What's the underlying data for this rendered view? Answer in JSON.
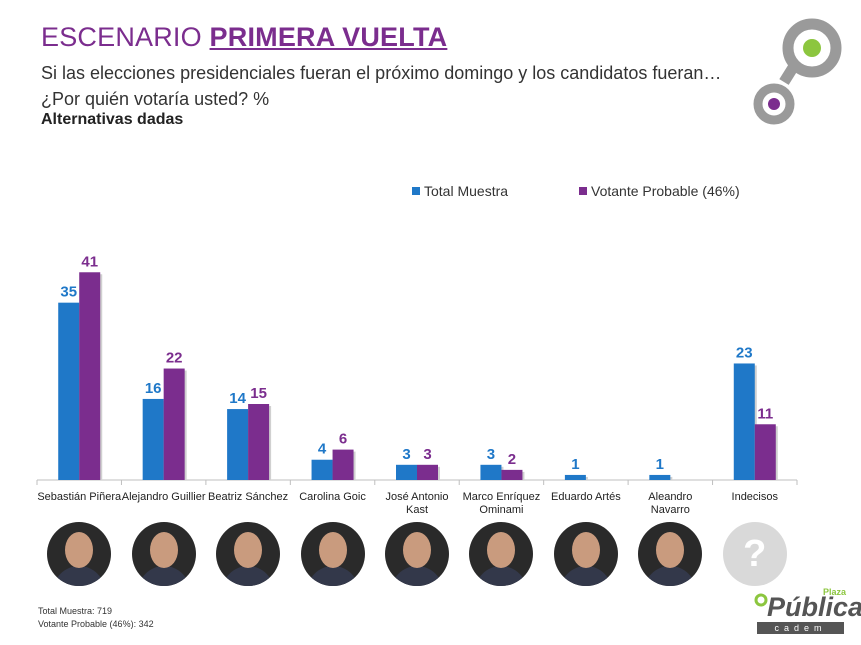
{
  "header": {
    "title_prefix": "ESCENARIO ",
    "title_strong": "PRIMERA VUELTA",
    "subtitle": "Si las elecciones presidenciales fueran el próximo domingo y los candidatos fueran… ¿Por quién votaría usted? %",
    "alt_label": "Alternativas dadas"
  },
  "footer": {
    "total": "Total Muestra: 719",
    "probable": "Votante Probable (46%): 342"
  },
  "logo": {
    "name": "Pública",
    "plaza": "Plaza",
    "cadem": "cadem",
    "mark_icon": "cadem-circle-logo-icon"
  },
  "chart_data": {
    "type": "bar",
    "categories": [
      "Sebastián Piñera",
      "Alejandro Guillier",
      "Beatriz Sánchez",
      "Carolina Goic",
      "José Antonio Kast",
      "Marco Enríquez Ominami",
      "Eduardo Artés",
      "Aleandro Navarro",
      "Indecisos"
    ],
    "series": [
      {
        "name": "Total Muestra",
        "color": "#1f78c8",
        "values": [
          35,
          16,
          14,
          4,
          3,
          3,
          1,
          1,
          23
        ]
      },
      {
        "name": "Votante Probable (46%)",
        "color": "#7b2d8e",
        "values": [
          41,
          22,
          15,
          6,
          3,
          2,
          null,
          null,
          11
        ]
      }
    ],
    "ylim": [
      0,
      45
    ],
    "grid": false,
    "legend": "top"
  }
}
